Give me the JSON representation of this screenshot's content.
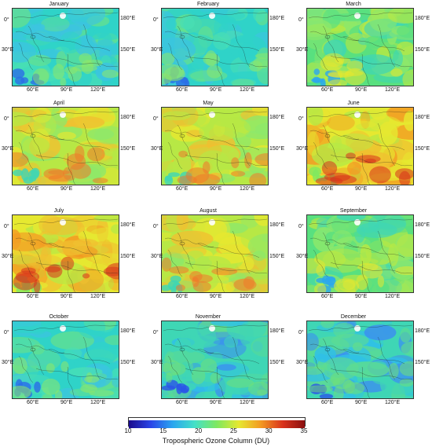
{
  "panels": [
    {
      "title": "January",
      "palette": "cool"
    },
    {
      "title": "February",
      "palette": "cool"
    },
    {
      "title": "March",
      "palette": "mild"
    },
    {
      "title": "April",
      "palette": "warm"
    },
    {
      "title": "May",
      "palette": "warm"
    },
    {
      "title": "June",
      "palette": "hot"
    },
    {
      "title": "July",
      "palette": "hot"
    },
    {
      "title": "August",
      "palette": "warm"
    },
    {
      "title": "September",
      "palette": "mild"
    },
    {
      "title": "October",
      "palette": "cool"
    },
    {
      "title": "November",
      "palette": "cold"
    },
    {
      "title": "December",
      "palette": "cold"
    }
  ],
  "axis_labels": {
    "lat_top": "0°",
    "lat_mid": "30°E",
    "lon_right_top": "180°E",
    "lon_right_mid": "150°E",
    "lon_bottom_1": "60°E",
    "lon_bottom_2": "90°E",
    "lon_bottom_3": "120°E"
  },
  "colorbar": {
    "ticks": [
      "10",
      "15",
      "20",
      "25",
      "30",
      "35"
    ],
    "range": [
      10,
      35
    ],
    "title": "Tropospheric Ozone Column (DU)",
    "colors": [
      "#1a0a8c",
      "#2a45e8",
      "#2aa6ef",
      "#44e0c7",
      "#7ee860",
      "#e6e830",
      "#f39a22",
      "#d9321c",
      "#8a0f0f"
    ]
  }
}
